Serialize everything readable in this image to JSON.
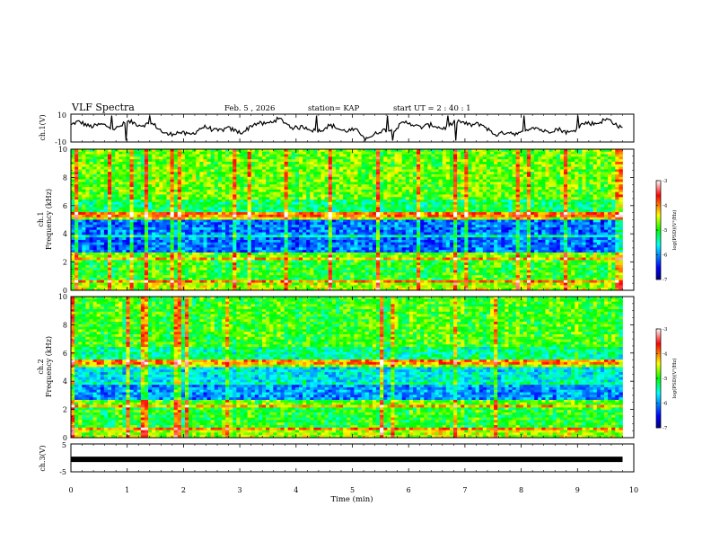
{
  "header": {
    "title": "VLF Spectra",
    "date": "Feb. 5 , 2026",
    "station": "station= KAP",
    "start": "start  UT =  2 : 40 : 1"
  },
  "chart_data": [
    {
      "type": "line",
      "name": "ch1-time-series",
      "ylabel": "ch.1(V)",
      "ylim": [
        -10,
        10
      ],
      "yticks": [
        "10",
        "-10"
      ],
      "xlim": [
        0,
        10
      ],
      "x_end": 9.8,
      "description_series": "continuous waveform roughly between -8 and +8 V"
    },
    {
      "type": "heatmap",
      "name": "ch1-spectrogram",
      "ylabel_top": "ch.1",
      "ylabel": "Frequency (kHz)",
      "ylim": [
        0,
        10
      ],
      "yticks": [
        "0",
        "2",
        "4",
        "6",
        "8",
        "10"
      ],
      "xlim": [
        0,
        10
      ],
      "x_end": 9.8,
      "colorbar": {
        "label": "log(PSD)(V²/Hz)",
        "range": [
          -7,
          -3
        ],
        "ticks": [
          "-3",
          "-4",
          "-5",
          "-6",
          "-7"
        ]
      }
    },
    {
      "type": "heatmap",
      "name": "ch2-spectrogram",
      "ylabel_top": "ch.2",
      "ylabel": "Frequency (kHz)",
      "ylim": [
        0,
        10
      ],
      "yticks": [
        "0",
        "2",
        "4",
        "6",
        "8",
        "10"
      ],
      "xlim": [
        0,
        10
      ],
      "x_end": 9.8,
      "colorbar": {
        "label": "log(PSD)(V²/Hz)",
        "range": [
          -7,
          -3
        ],
        "ticks": [
          "-3",
          "-4",
          "-5",
          "-6",
          "-7"
        ]
      }
    },
    {
      "type": "line",
      "name": "ch3-time-series",
      "ylabel": "ch.3(V)",
      "ylim": [
        -5,
        5
      ],
      "yticks": [
        "5",
        "-5"
      ],
      "xlim": [
        0,
        10
      ],
      "x_end": 9.8,
      "constant_value": -0.5
    }
  ],
  "xaxis": {
    "label": "Time  (min)",
    "ticks": [
      "0",
      "1",
      "2",
      "3",
      "4",
      "5",
      "6",
      "7",
      "8",
      "9",
      "10"
    ]
  },
  "colors": {
    "axis": "#000000",
    "background": "#ffffff"
  }
}
